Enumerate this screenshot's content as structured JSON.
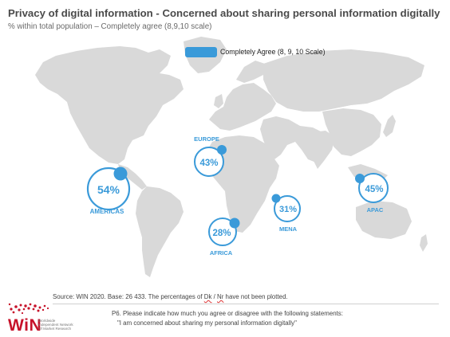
{
  "colors": {
    "accent": "#3a9ad9",
    "land": "#d9d9d9",
    "brand": "#c7122a"
  },
  "header": {
    "title": "Privacy of digital information  - Concerned about sharing personal information digitally",
    "subtitle": "% within total population – Completely agree (8,9,10 scale)"
  },
  "legend": {
    "label": "Completely Agree (8, 9, 10 Scale)"
  },
  "chart_data": {
    "type": "bubble-map",
    "title": "Privacy of digital information  - Concerned about sharing personal information digitally",
    "subtitle": "% within total population – Completely agree (8,9,10 scale)",
    "series": [
      {
        "name": "Completely Agree (8, 9, 10 Scale)",
        "unit": "%",
        "regions": [
          {
            "region": "AMERICAS",
            "value": 54,
            "label": "54%"
          },
          {
            "region": "EUROPE",
            "value": 43,
            "label": "43%"
          },
          {
            "region": "AFRICA",
            "value": 28,
            "label": "28%"
          },
          {
            "region": "MENA",
            "value": 31,
            "label": "31%"
          },
          {
            "region": "APAC",
            "value": 45,
            "label": "45%"
          }
        ]
      }
    ]
  },
  "footer": {
    "source_before": "Source: WIN 2020. Base: 26 433. The percentages of ",
    "source_dk": "Dk",
    "source_mid": " / ",
    "source_nr": "Nr",
    "source_after": " have not been plotted.",
    "question_line1": "P6. Please indicate how much you agree or disagree with the following statements:",
    "question_line2": "\"I am concerned about sharing my personal information digitally\""
  },
  "logo": {
    "word": "WiN",
    "tag_lines": [
      "Worldwide",
      "Independent Network",
      "Of Market Research"
    ]
  }
}
